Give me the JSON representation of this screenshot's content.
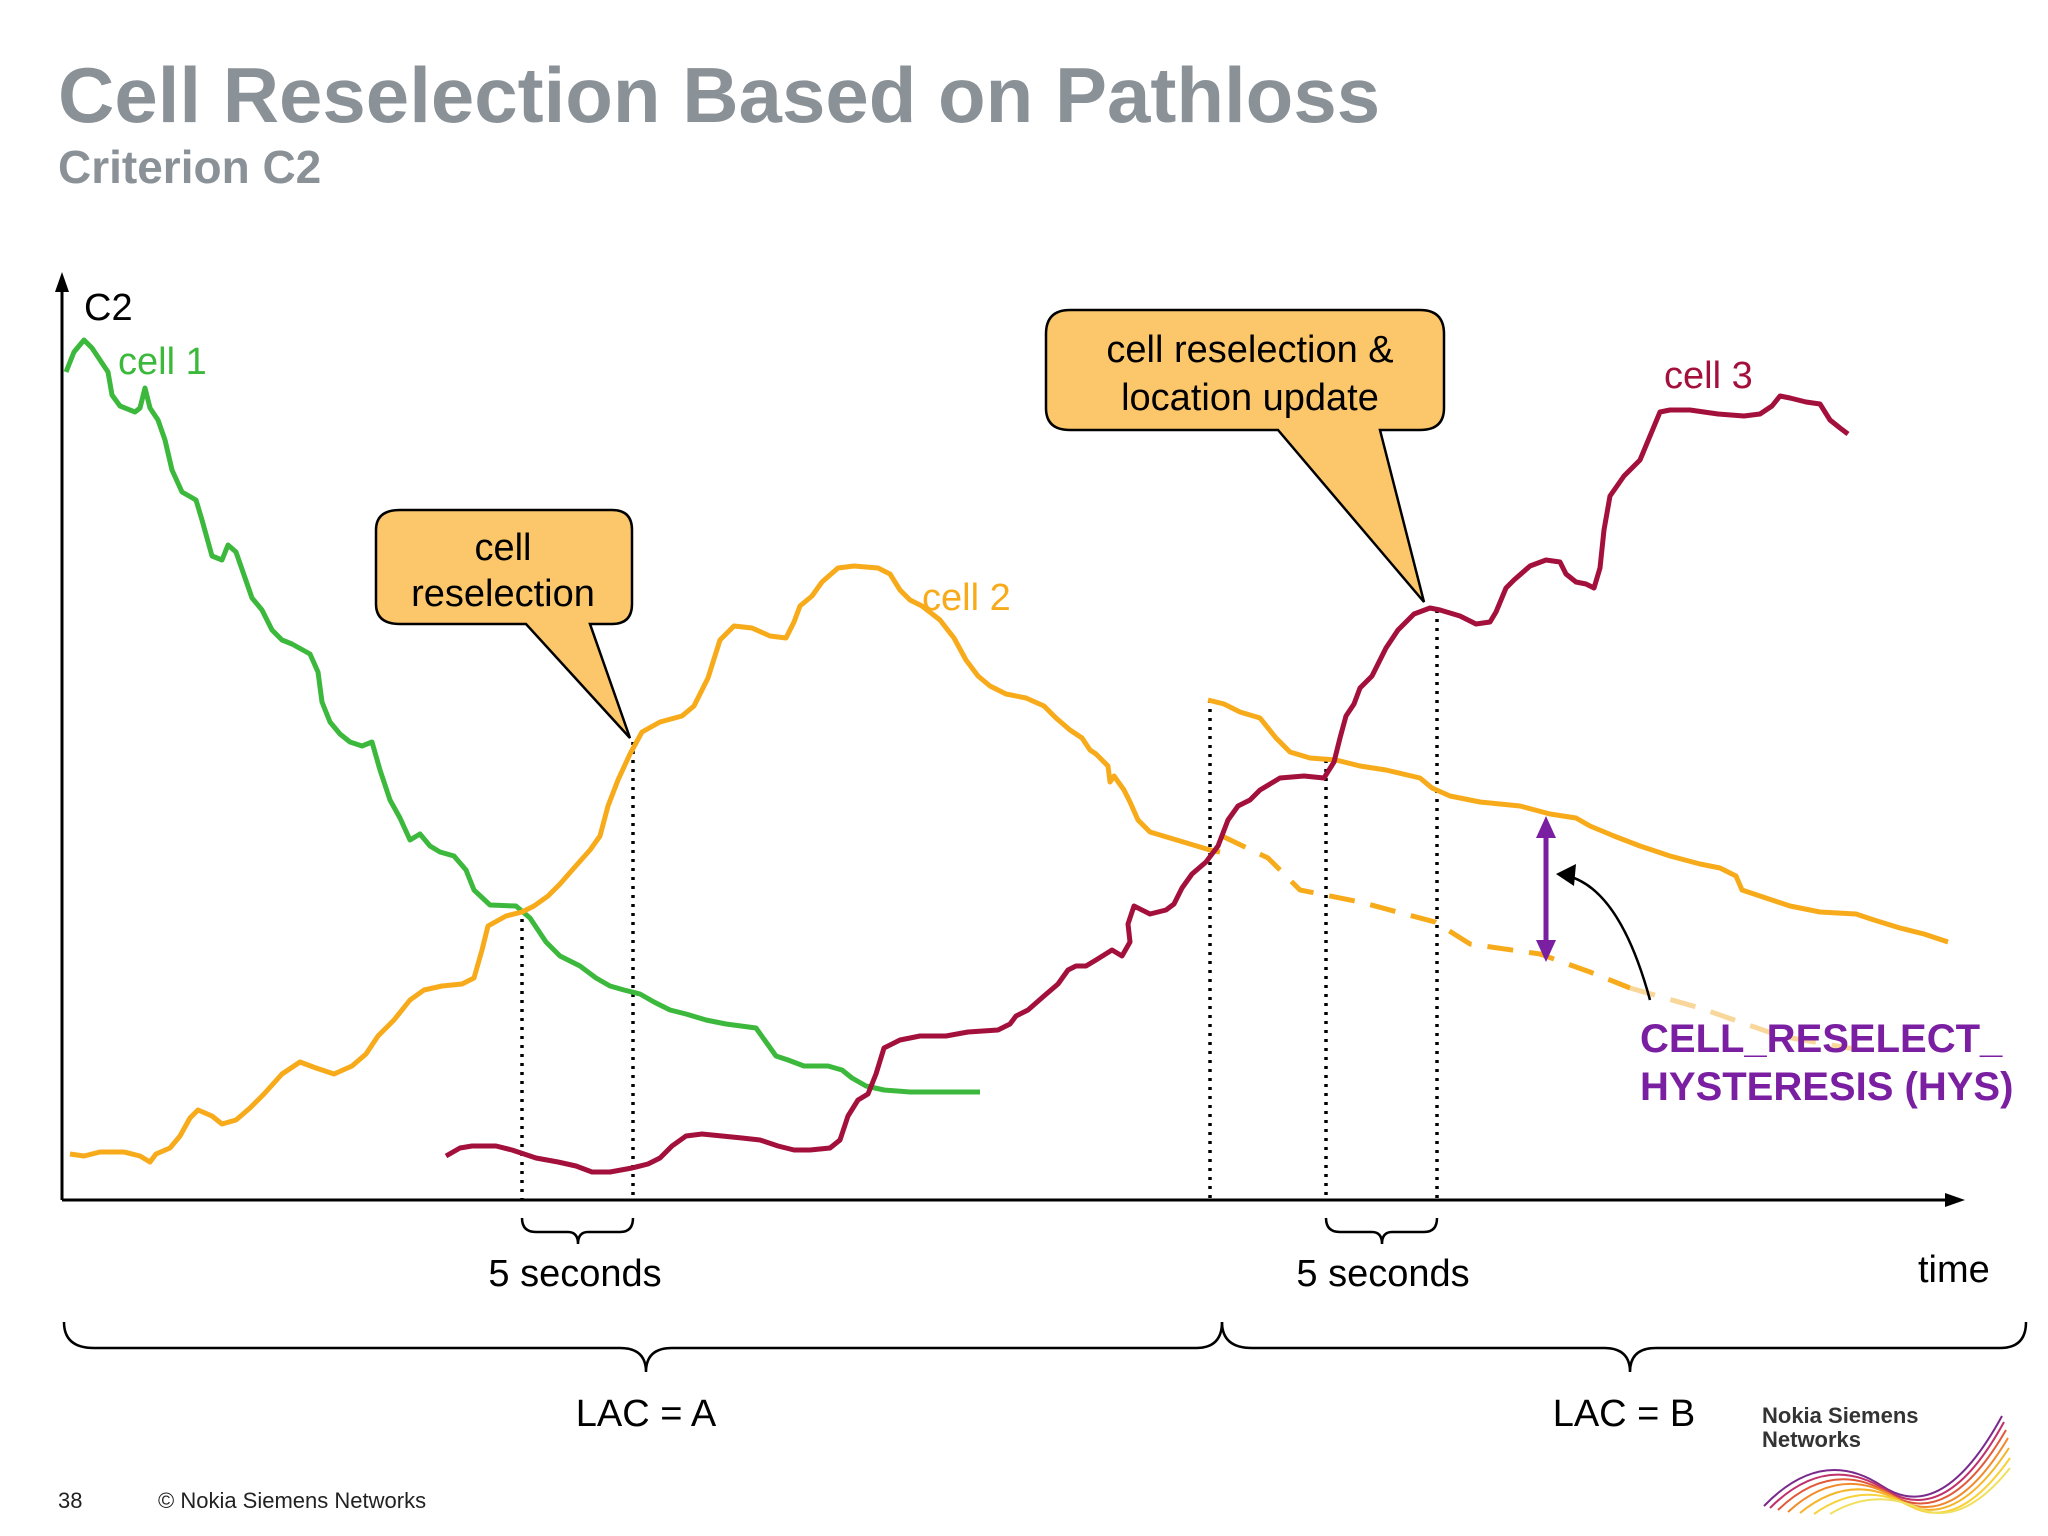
{
  "slide": {
    "title": "Cell Reselection Based on Pathloss",
    "subtitle": "Criterion C2",
    "page_number": "38",
    "copyright": "© Nokia Siemens Networks"
  },
  "axes": {
    "y_label": "C2",
    "x_label": "time"
  },
  "curves": {
    "cell1": {
      "label": "cell 1",
      "color": "#3cb93c"
    },
    "cell2": {
      "label": "cell 2",
      "color": "#f7ab1b"
    },
    "cell3": {
      "label": "cell 3",
      "color": "#a3103c"
    }
  },
  "callouts": {
    "first": {
      "line1": "cell",
      "line2": "reselection"
    },
    "second": {
      "line1": "cell reselection &",
      "line2": "location update"
    }
  },
  "intervals": {
    "first": "5 seconds",
    "second": "5 seconds"
  },
  "lac": {
    "a": "LAC = A",
    "b": "LAC = B"
  },
  "hysteresis": {
    "line1": "CELL_RESELECT_",
    "line2": "HYSTERESIS (HYS)",
    "color": "#7b1fa2"
  },
  "logo": {
    "line1": "Nokia Siemens",
    "line2": "Networks"
  }
}
